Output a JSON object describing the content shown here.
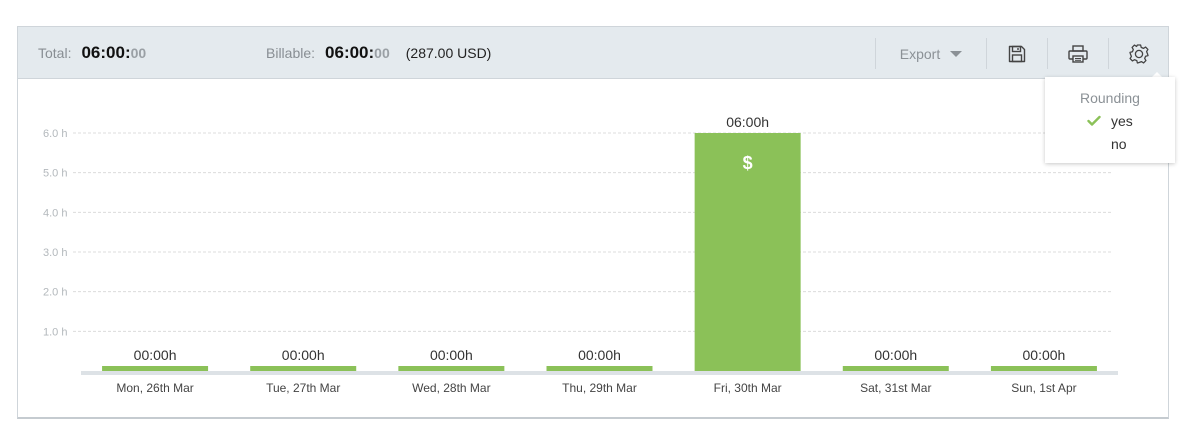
{
  "summary": {
    "total_label": "Total:",
    "total_main": "06:00:",
    "total_seconds": "00",
    "billable_label": "Billable:",
    "billable_main": "06:00:",
    "billable_seconds": "00",
    "billable_amount": "(287.00 USD)"
  },
  "toolbar": {
    "export_label": "Export",
    "icons": [
      "save-icon",
      "print-icon",
      "gear-icon"
    ]
  },
  "rounding_menu": {
    "title": "Rounding",
    "options": [
      {
        "label": "yes",
        "checked": true
      },
      {
        "label": "no",
        "checked": false
      }
    ]
  },
  "colors": {
    "bar": "#8bc158",
    "accent_check": "#8bc158",
    "topbar_bg": "#e4eaee"
  },
  "chart_data": {
    "type": "bar",
    "categories": [
      "Mon, 26th Mar",
      "Tue, 27th Mar",
      "Wed, 28th Mar",
      "Thu, 29th Mar",
      "Fri, 30th Mar",
      "Sat, 31st Mar",
      "Sun, 1st Apr"
    ],
    "values": [
      0,
      0,
      0,
      0,
      6,
      0,
      0
    ],
    "data_labels": [
      "00:00h",
      "00:00h",
      "00:00h",
      "00:00h",
      "06:00h",
      "00:00h",
      "00:00h"
    ],
    "billable_marker": [
      false,
      false,
      false,
      false,
      true,
      false,
      false
    ],
    "billable_symbol": "$",
    "y_ticks": [
      "1.0 h",
      "2.0 h",
      "3.0 h",
      "4.0 h",
      "5.0 h",
      "6.0 h"
    ],
    "y_tick_values": [
      1,
      2,
      3,
      4,
      5,
      6
    ],
    "ylim": [
      0,
      6
    ],
    "grid": true
  }
}
